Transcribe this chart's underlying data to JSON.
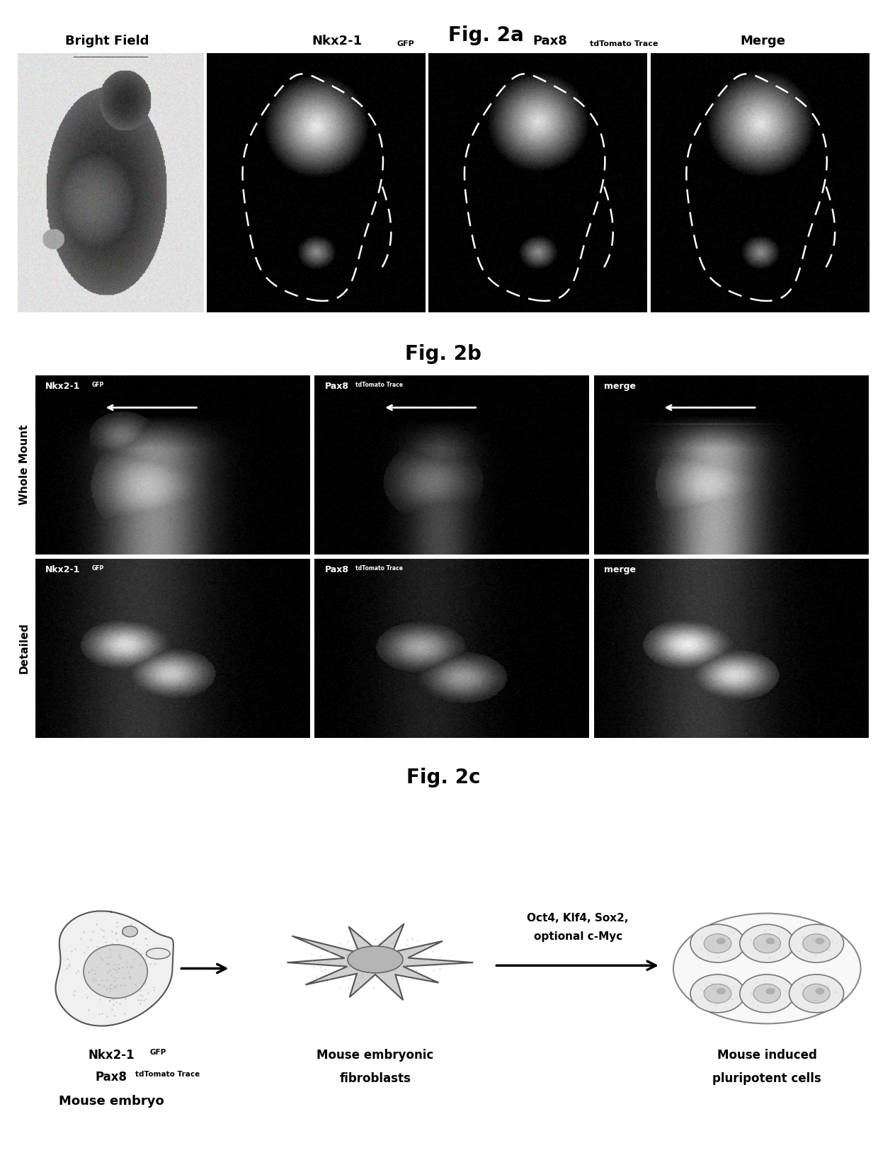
{
  "fig_title_a": "Fig. 2a",
  "fig_title_b": "Fig. 2b",
  "fig_title_c": "Fig. 2c",
  "panel_a_col_labels": [
    "Bright Field",
    "Nkx2-1",
    "Pax8",
    "Merge"
  ],
  "panel_a_col_sup": [
    "",
    "GFP",
    "tdTomato Trace",
    ""
  ],
  "panel_b_col_labels": [
    "Nkx2-1",
    "Pax8",
    "merge"
  ],
  "panel_b_col_sup": [
    "GFP",
    "tdTomato Trace",
    ""
  ],
  "panel_b_row_labels": [
    "Whole Mount",
    "Detailed"
  ],
  "panel_c_embryo1": "Nkx2-1",
  "panel_c_embryo1_sup": "GFP",
  "panel_c_embryo2": "Pax8",
  "panel_c_embryo2_sup": "tdTomato Trace",
  "panel_c_embryo3": "Mouse embryo",
  "panel_c_fibro": "Mouse embryonic\nfibroblasts",
  "panel_c_arrow_text1": "Oct4, Klf4, Sox2,",
  "panel_c_arrow_text2": "optional c-Myc",
  "panel_c_ipsc": "Mouse induced\npluripotent cells",
  "bg_color": "#ffffff"
}
